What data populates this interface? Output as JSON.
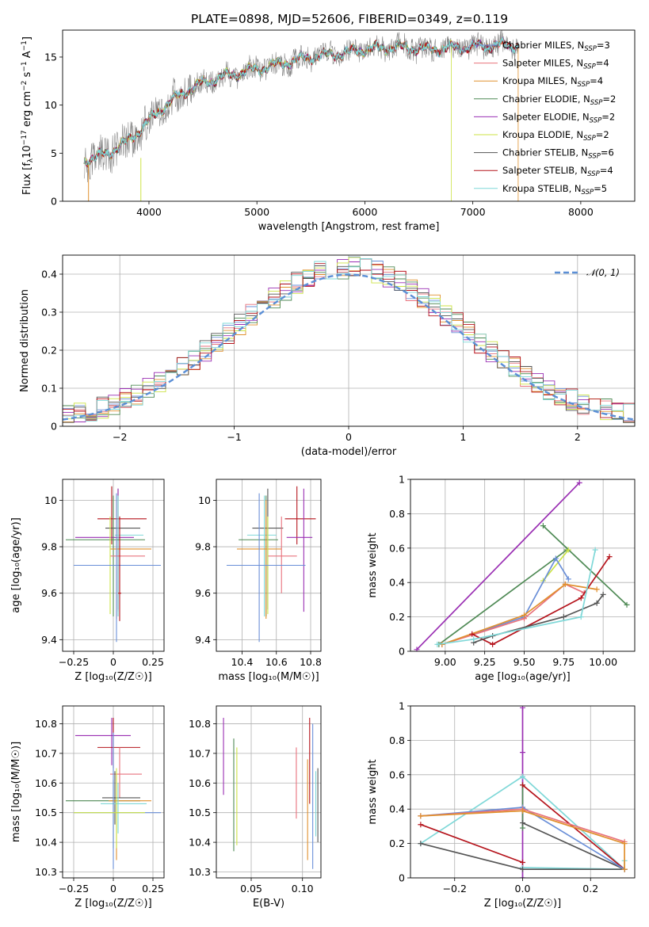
{
  "title": "PLATE=0898, MJD=52606, FIBERID=0349, z=0.119",
  "colors": {
    "chabrier_miles": "#6a8fd8",
    "salpeter_miles": "#e8727c",
    "kroupa_miles": "#e0902e",
    "chabrier_elodie": "#4f8a55",
    "salpeter_elodie": "#9a2fb3",
    "kroupa_elodie": "#cce346",
    "chabrier_stelib": "#555555",
    "salpeter_stelib": "#b5141c",
    "kroupa_stelib": "#7fd8d8",
    "data": "#808080",
    "gaussian": "#5b8fd6"
  },
  "legend": [
    {
      "label": "Chabrier MILES, N",
      "sub": "SSP",
      "tail": "=3",
      "color_key": "chabrier_miles"
    },
    {
      "label": "Salpeter MILES, N",
      "sub": "SSP",
      "tail": "=4",
      "color_key": "salpeter_miles"
    },
    {
      "label": "Kroupa MILES, N",
      "sub": "SSP",
      "tail": "=4",
      "color_key": "kroupa_miles"
    },
    {
      "label": "Chabrier ELODIE, N",
      "sub": "SSP",
      "tail": "=2",
      "color_key": "chabrier_elodie"
    },
    {
      "label": "Salpeter ELODIE, N",
      "sub": "SSP",
      "tail": "=2",
      "color_key": "salpeter_elodie"
    },
    {
      "label": "Kroupa ELODIE, N",
      "sub": "SSP",
      "tail": "=2",
      "color_key": "kroupa_elodie"
    },
    {
      "label": "Chabrier STELIB, N",
      "sub": "SSP",
      "tail": "=6",
      "color_key": "chabrier_stelib"
    },
    {
      "label": "Salpeter STELIB, N",
      "sub": "SSP",
      "tail": "=4",
      "color_key": "salpeter_stelib"
    },
    {
      "label": "Kroupa STELIB, N",
      "sub": "SSP",
      "tail": "=5",
      "color_key": "kroupa_stelib"
    }
  ],
  "chart_data": [
    {
      "id": "spectrum",
      "type": "line",
      "xlabel": "wavelength [Angstrom, rest frame]",
      "ylabel": "Flux [f",
      "ylabel_parts": {
        "sub": "λ",
        "mid": "10",
        "sup": "−17",
        "unit": " erg cm",
        "sup2": "−2",
        "unit2": " s",
        "sup3": "−1",
        "unit3": " A",
        "sup4": "−1",
        "end": "]"
      },
      "xlim": [
        3200,
        8500
      ],
      "ylim": [
        0,
        17.8
      ],
      "xticks": [
        4000,
        5000,
        6000,
        7000,
        8000
      ],
      "yticks": [
        0,
        5,
        10,
        15
      ],
      "continuum": [
        [
          3400,
          4.3
        ],
        [
          3500,
          4.5
        ],
        [
          3650,
          5.2
        ],
        [
          3800,
          6.2
        ],
        [
          3950,
          7.8
        ],
        [
          4100,
          9.5
        ],
        [
          4300,
          11.2
        ],
        [
          4500,
          12.3
        ],
        [
          4700,
          13.0
        ],
        [
          4900,
          13.5
        ],
        [
          5100,
          14.0
        ],
        [
          5300,
          14.5
        ],
        [
          5500,
          15.0
        ],
        [
          5800,
          15.4
        ],
        [
          6000,
          15.8
        ],
        [
          6300,
          16.0
        ],
        [
          6600,
          15.8
        ],
        [
          6900,
          16.0
        ],
        [
          7200,
          16.2
        ],
        [
          7400,
          16.2
        ]
      ],
      "data_range": [
        3400,
        7420
      ],
      "cutoffs": [
        {
          "series": "kroupa_elodie",
          "x": 6800
        },
        {
          "series": "kroupa_miles",
          "x": 7420
        }
      ]
    },
    {
      "id": "residuals",
      "type": "line",
      "xlabel": "(data-model)/error",
      "ylabel": "Normed distribution",
      "xlim": [
        -2.5,
        2.5
      ],
      "ylim": [
        0,
        0.45
      ],
      "xticks": [
        -2,
        -1,
        0,
        1,
        2
      ],
      "yticks": [
        0.0,
        0.1,
        0.2,
        0.3,
        0.4
      ],
      "series": [
        {
          "name": "𝒩(0, 1)",
          "type": "gaussian",
          "mu": 0,
          "sigma": 1
        }
      ],
      "bin_width": 0.1
    },
    {
      "id": "age_vs_Z",
      "type": "scatter",
      "xlabel": "Z [log₁₀(Z/Z☉)]",
      "ylabel": "age  [log₁₀(age/yr)]",
      "xlim": [
        -0.32,
        0.32
      ],
      "ylim": [
        9.35,
        10.09
      ],
      "xticks": [
        -0.25,
        0.0,
        0.25
      ],
      "yticks": [
        9.4,
        9.6,
        9.8,
        10.0
      ],
      "points": [
        {
          "c": "salpeter_stelib",
          "x": -0.01,
          "xe": [
            -0.1,
            0.21
          ],
          "y": 9.92,
          "ye": [
            9.81,
            10.06
          ]
        },
        {
          "c": "chabrier_stelib",
          "x": 0.03,
          "xe": [
            -0.05,
            0.17
          ],
          "y": 9.88,
          "ye": [
            9.53,
            10.05
          ]
        },
        {
          "c": "salpeter_elodie",
          "x": 0.03,
          "xe": [
            -0.24,
            0.13
          ],
          "y": 9.84,
          "ye": [
            9.52,
            10.05
          ]
        },
        {
          "c": "kroupa_stelib",
          "x": 0.03,
          "xe": [
            0.01,
            0.19
          ],
          "y": 9.85,
          "ye": [
            9.5,
            10.02
          ]
        },
        {
          "c": "chabrier_elodie",
          "x": 0.0,
          "xe": [
            -0.3,
            0.2
          ],
          "y": 9.83,
          "ye": [
            9.5,
            10.02
          ]
        },
        {
          "c": "kroupa_miles",
          "x": 0.02,
          "xe": [
            -0.02,
            0.24
          ],
          "y": 9.79,
          "ye": [
            9.49,
            10.0
          ]
        },
        {
          "c": "salpeter_miles",
          "x": 0.04,
          "xe": [
            -0.02,
            0.2
          ],
          "y": 9.76,
          "ye": [
            9.6,
            9.93
          ]
        },
        {
          "c": "kroupa_elodie",
          "x": -0.02,
          "xe": [
            -0.25,
            0.19
          ],
          "y": 9.72,
          "ye": [
            9.51,
            9.93
          ]
        },
        {
          "c": "chabrier_miles",
          "x": 0.02,
          "xe": [
            -0.25,
            0.3
          ],
          "y": 9.72,
          "ye": [
            9.39,
            10.03
          ]
        },
        {
          "c": "salpeter_stelib",
          "x": 0.04,
          "xe": [
            0.03,
            0.05
          ],
          "y": 9.6,
          "ye": [
            9.48,
            9.93
          ]
        }
      ]
    },
    {
      "id": "age_vs_mass",
      "type": "scatter",
      "xlabel": "mass [log₁₀(M/M☉)]",
      "ylabel": "",
      "xlim": [
        10.25,
        10.86
      ],
      "ylim": [
        9.35,
        10.09
      ],
      "xticks": [
        10.4,
        10.6,
        10.8
      ],
      "yticks": [
        9.4,
        9.6,
        9.8,
        10.0
      ],
      "points": [
        {
          "c": "salpeter_stelib",
          "x": 10.72,
          "xe": [
            10.65,
            10.83
          ],
          "y": 9.92,
          "ye": [
            9.81,
            10.06
          ]
        },
        {
          "c": "chabrier_stelib",
          "x": 10.55,
          "xe": [
            10.46,
            10.64
          ],
          "y": 9.88,
          "ye": [
            9.53,
            10.05
          ]
        },
        {
          "c": "salpeter_elodie",
          "x": 10.76,
          "xe": [
            10.66,
            10.81
          ],
          "y": 9.84,
          "ye": [
            9.52,
            10.05
          ]
        },
        {
          "c": "kroupa_stelib",
          "x": 10.53,
          "xe": [
            10.43,
            10.6
          ],
          "y": 9.85,
          "ye": [
            9.5,
            10.02
          ]
        },
        {
          "c": "chabrier_elodie",
          "x": 10.54,
          "xe": [
            10.38,
            10.61
          ],
          "y": 9.83,
          "ye": [
            9.5,
            10.02
          ]
        },
        {
          "c": "kroupa_miles",
          "x": 10.54,
          "xe": [
            10.37,
            10.63
          ],
          "y": 9.79,
          "ye": [
            9.49,
            10.0
          ]
        },
        {
          "c": "salpeter_miles",
          "x": 10.63,
          "xe": [
            10.55,
            10.72
          ],
          "y": 9.76,
          "ye": [
            9.6,
            9.93
          ]
        },
        {
          "c": "kroupa_elodie",
          "x": 10.55,
          "xe": [
            10.38,
            10.68
          ],
          "y": 9.72,
          "ye": [
            9.51,
            9.93
          ]
        },
        {
          "c": "chabrier_miles",
          "x": 10.5,
          "xe": [
            10.31,
            10.77
          ],
          "y": 9.72,
          "ye": [
            9.39,
            10.03
          ]
        }
      ]
    },
    {
      "id": "weight_vs_age",
      "type": "line",
      "xlabel": "age  [log₁₀(age/yr)]",
      "ylabel": "mass weight",
      "xlim": [
        8.78,
        10.2
      ],
      "ylim": [
        0,
        1.0
      ],
      "xticks": [
        9.0,
        9.25,
        9.5,
        9.75,
        10.0
      ],
      "xtick_labels": [
        "9.00",
        "9.25",
        "9.50",
        "9.75",
        "10.00"
      ],
      "yticks": [
        0.0,
        0.2,
        0.4,
        0.6,
        0.8,
        1.0
      ],
      "series": [
        {
          "c": "salpeter_elodie",
          "x": [
            8.82,
            9.85
          ],
          "y": [
            0.01,
            0.98
          ]
        },
        {
          "c": "chabrier_elodie",
          "x": [
            9.62,
            10.15
          ],
          "y": [
            0.73,
            0.27
          ]
        },
        {
          "c": "chabrier_elodie",
          "x": [
            8.96,
            9.77
          ],
          "y": [
            0.04,
            0.59
          ]
        },
        {
          "c": "kroupa_elodie",
          "x": [
            9.62,
            9.78
          ],
          "y": [
            0.41,
            0.59
          ]
        },
        {
          "c": "chabrier_miles",
          "x": [
            8.98,
            9.5,
            9.7,
            9.78
          ],
          "y": [
            0.04,
            0.2,
            0.54,
            0.42
          ]
        },
        {
          "c": "salpeter_miles",
          "x": [
            8.98,
            9.5,
            9.76,
            9.88
          ],
          "y": [
            0.04,
            0.19,
            0.39,
            0.34
          ]
        },
        {
          "c": "kroupa_miles",
          "x": [
            8.98,
            9.5,
            9.76,
            9.96
          ],
          "y": [
            0.04,
            0.21,
            0.39,
            0.36
          ]
        },
        {
          "c": "salpeter_stelib",
          "x": [
            9.17,
            9.3,
            9.86,
            10.04
          ],
          "y": [
            0.1,
            0.04,
            0.31,
            0.55
          ]
        },
        {
          "c": "chabrier_stelib",
          "x": [
            9.18,
            9.3,
            9.75,
            9.96,
            10.0
          ],
          "y": [
            0.05,
            0.09,
            0.2,
            0.28,
            0.33
          ]
        },
        {
          "c": "kroupa_stelib",
          "x": [
            8.95,
            9.18,
            9.86,
            9.95
          ],
          "y": [
            0.04,
            0.07,
            0.2,
            0.59
          ]
        }
      ]
    },
    {
      "id": "mass_vs_Z",
      "type": "scatter",
      "xlabel": "Z [log₁₀(Z/Z☉)]",
      "ylabel": "mass [log₁₀(M/M☉)]",
      "xlim": [
        -0.32,
        0.32
      ],
      "ylim": [
        10.28,
        10.86
      ],
      "xticks": [
        -0.25,
        0.0,
        0.25
      ],
      "yticks": [
        10.3,
        10.4,
        10.5,
        10.6,
        10.7,
        10.8
      ],
      "points": [
        {
          "c": "salpeter_elodie",
          "x": -0.01,
          "xe": [
            -0.24,
            0.11
          ],
          "y": 10.76,
          "ye": [
            10.66,
            10.82
          ]
        },
        {
          "c": "salpeter_stelib",
          "x": 0.0,
          "xe": [
            -0.1,
            0.17
          ],
          "y": 10.72,
          "ye": [
            10.65,
            10.82
          ]
        },
        {
          "c": "salpeter_miles",
          "x": 0.04,
          "xe": [
            -0.02,
            0.18
          ],
          "y": 10.63,
          "ye": [
            10.55,
            10.72
          ]
        },
        {
          "c": "chabrier_stelib",
          "x": 0.01,
          "xe": [
            -0.07,
            0.17
          ],
          "y": 10.55,
          "ye": [
            10.46,
            10.64
          ]
        },
        {
          "c": "chabrier_elodie",
          "x": 0.0,
          "xe": [
            -0.3,
            0.17
          ],
          "y": 10.54,
          "ye": [
            10.38,
            10.61
          ]
        },
        {
          "c": "kroupa_miles",
          "x": 0.02,
          "xe": [
            -0.03,
            0.24
          ],
          "y": 10.54,
          "ye": [
            10.34,
            10.63
          ]
        },
        {
          "c": "kroupa_stelib",
          "x": 0.03,
          "xe": [
            -0.08,
            0.21
          ],
          "y": 10.53,
          "ye": [
            10.43,
            10.6
          ]
        },
        {
          "c": "chabrier_miles",
          "x": 0.0,
          "xe": [
            -0.25,
            0.3
          ],
          "y": 10.5,
          "ye": [
            10.31,
            10.77
          ]
        },
        {
          "c": "kroupa_elodie",
          "x": 0.02,
          "xe": [
            -0.25,
            0.2
          ],
          "y": 10.5,
          "ye": [
            10.38,
            10.65
          ]
        }
      ]
    },
    {
      "id": "mass_vs_ebv",
      "type": "scatter",
      "xlabel": "E(B-V)",
      "ylabel": "",
      "xlim": [
        0.016,
        0.118
      ],
      "ylim": [
        10.28,
        10.86
      ],
      "xticks": [
        0.05,
        0.1
      ],
      "xtick_labels": [
        "0.05",
        "0.10"
      ],
      "yticks": [
        10.3,
        10.4,
        10.5,
        10.6,
        10.7,
        10.8
      ],
      "points": [
        {
          "c": "salpeter_elodie",
          "x": 0.023,
          "y": 10.69,
          "ye": [
            10.56,
            10.82
          ]
        },
        {
          "c": "chabrier_elodie",
          "x": 0.033,
          "y": 10.56,
          "ye": [
            10.37,
            10.75
          ]
        },
        {
          "c": "kroupa_elodie",
          "x": 0.036,
          "y": 10.55,
          "ye": [
            10.39,
            10.72
          ]
        },
        {
          "c": "salpeter_miles",
          "x": 0.094,
          "y": 10.6,
          "ye": [
            10.48,
            10.72
          ]
        },
        {
          "c": "kroupa_miles",
          "x": 0.105,
          "y": 10.49,
          "ye": [
            10.34,
            10.68
          ]
        },
        {
          "c": "salpeter_stelib",
          "x": 0.107,
          "y": 10.68,
          "ye": [
            10.53,
            10.82
          ]
        },
        {
          "c": "chabrier_miles",
          "x": 0.11,
          "y": 10.5,
          "ye": [
            10.31,
            10.8
          ]
        },
        {
          "c": "kroupa_stelib",
          "x": 0.113,
          "y": 10.53,
          "ye": [
            10.42,
            10.64
          ]
        },
        {
          "c": "chabrier_stelib",
          "x": 0.115,
          "y": 10.52,
          "ye": [
            10.4,
            10.65
          ]
        }
      ]
    },
    {
      "id": "weight_vs_Z",
      "type": "line",
      "xlabel": "Z [log₁₀(Z/Z☉)]",
      "ylabel": "mass weight",
      "xlim": [
        -0.33,
        0.33
      ],
      "ylim": [
        0,
        1.0
      ],
      "xticks": [
        -0.2,
        0.0,
        0.2
      ],
      "xtick_labels": [
        "−0.2",
        "0.0",
        "0.2"
      ],
      "yticks": [
        0.0,
        0.2,
        0.4,
        0.6,
        0.8,
        1.0
      ],
      "series": [
        {
          "c": "salpeter_elodie",
          "x": [
            0.0,
            0.0,
            0.0
          ],
          "y": [
            0.0,
            0.73,
            0.99
          ]
        },
        {
          "c": "chabrier_elodie",
          "x": [
            0.0,
            0.0,
            0.0
          ],
          "y": [
            0.29,
            0.41,
            0.54
          ]
        },
        {
          "c": "kroupa_stelib",
          "x": [
            -0.3,
            0.0,
            0.3,
            0.3
          ],
          "y": [
            0.2,
            0.59,
            0.05,
            0.1
          ]
        },
        {
          "c": "kroupa_stelib",
          "x": [
            0.0,
            0.3
          ],
          "y": [
            0.06,
            0.05
          ]
        },
        {
          "c": "chabrier_stelib",
          "x": [
            -0.3,
            0.0,
            0.3
          ],
          "y": [
            0.2,
            0.05,
            0.05
          ]
        },
        {
          "c": "chabrier_stelib",
          "x": [
            0.0,
            0.3
          ],
          "y": [
            0.32,
            0.05
          ]
        },
        {
          "c": "salpeter_stelib",
          "x": [
            -0.3,
            0.0
          ],
          "y": [
            0.31,
            0.09
          ]
        },
        {
          "c": "salpeter_stelib",
          "x": [
            0.0,
            0.3
          ],
          "y": [
            0.54,
            0.05
          ]
        },
        {
          "c": "chabrier_miles",
          "x": [
            -0.3,
            0.0,
            0.3
          ],
          "y": [
            0.36,
            0.41,
            0.05
          ]
        },
        {
          "c": "salpeter_miles",
          "x": [
            -0.3,
            0.0,
            0.3
          ],
          "y": [
            0.36,
            0.4,
            0.21
          ]
        },
        {
          "c": "kroupa_miles",
          "x": [
            -0.3,
            0.0,
            0.3,
            0.3
          ],
          "y": [
            0.36,
            0.39,
            0.2,
            0.05
          ]
        }
      ]
    }
  ]
}
